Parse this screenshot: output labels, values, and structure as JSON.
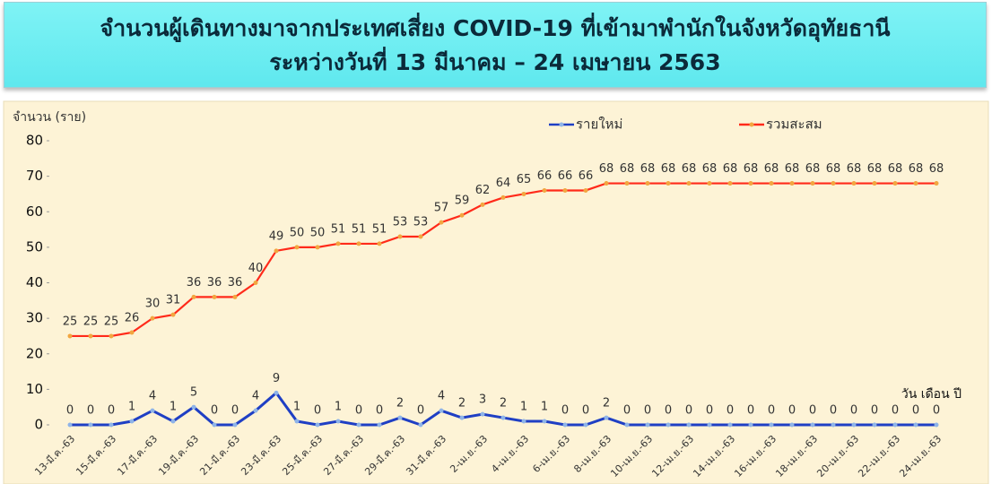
{
  "chart_data": {
    "type": "line",
    "title": "จำนวนผู้เดินทางมาจากประเทศเสี่ยง COVID-19 ที่เข้ามาพำนักในจังหวัดอุทัยธานี",
    "subtitle": "ระหว่างวันที่ 13 มีนาคม – 24 เมษายน 2563",
    "y_label": "จำนวน (ราย)",
    "x_label": "วัน เดือน ปี",
    "categories": [
      "13-มี.ค.-63",
      null,
      "15-มี.ค.-63",
      null,
      "17-มี.ค.-63",
      null,
      "19-มี.ค.-63",
      null,
      "21-มี.ค.-63",
      null,
      "23-มี.ค.-63",
      null,
      "25-มี.ค.-63",
      null,
      "27-มี.ค.-63",
      null,
      "29-มี.ค.-63",
      null,
      "31-มี.ค.-63",
      null,
      "2-เม.ย.-63",
      null,
      "4-เม.ย.-63",
      null,
      "6-เม.ย.-63",
      null,
      "8-เม.ย.-63",
      null,
      "10-เม.ย.-63",
      null,
      "12-เม.ย.-63",
      null,
      "14-เม.ย.-63",
      null,
      "16-เม.ย.-63",
      null,
      "18-เม.ย.-63",
      null,
      "20-เม.ย.-63",
      null,
      "22-เม.ย.-63",
      null,
      "24-เม.ย.-63"
    ],
    "series": [
      {
        "name": "รายใหม่",
        "color": "#1f3fc4",
        "marker_color": "#8fb4e8",
        "values": [
          0,
          0,
          0,
          1,
          4,
          1,
          5,
          0,
          0,
          4,
          9,
          1,
          0,
          1,
          0,
          0,
          2,
          0,
          4,
          2,
          3,
          2,
          1,
          1,
          0,
          0,
          2,
          0,
          0,
          0,
          0,
          0,
          0,
          0,
          0,
          0,
          0,
          0,
          0,
          0,
          0,
          0,
          0
        ]
      },
      {
        "name": "รวมสะสม",
        "color": "#ff2a1a",
        "marker_color": "#f2a640",
        "values": [
          25,
          25,
          25,
          26,
          30,
          31,
          36,
          36,
          36,
          40,
          49,
          50,
          50,
          51,
          51,
          51,
          53,
          53,
          57,
          59,
          62,
          64,
          65,
          66,
          66,
          66,
          68,
          68,
          68,
          68,
          68,
          68,
          68,
          68,
          68,
          68,
          68,
          68,
          68,
          68,
          68,
          68,
          68
        ]
      }
    ],
    "ylim": [
      0,
      80
    ],
    "yticks": [
      0,
      10,
      20,
      30,
      40,
      50,
      60,
      70,
      80
    ]
  }
}
